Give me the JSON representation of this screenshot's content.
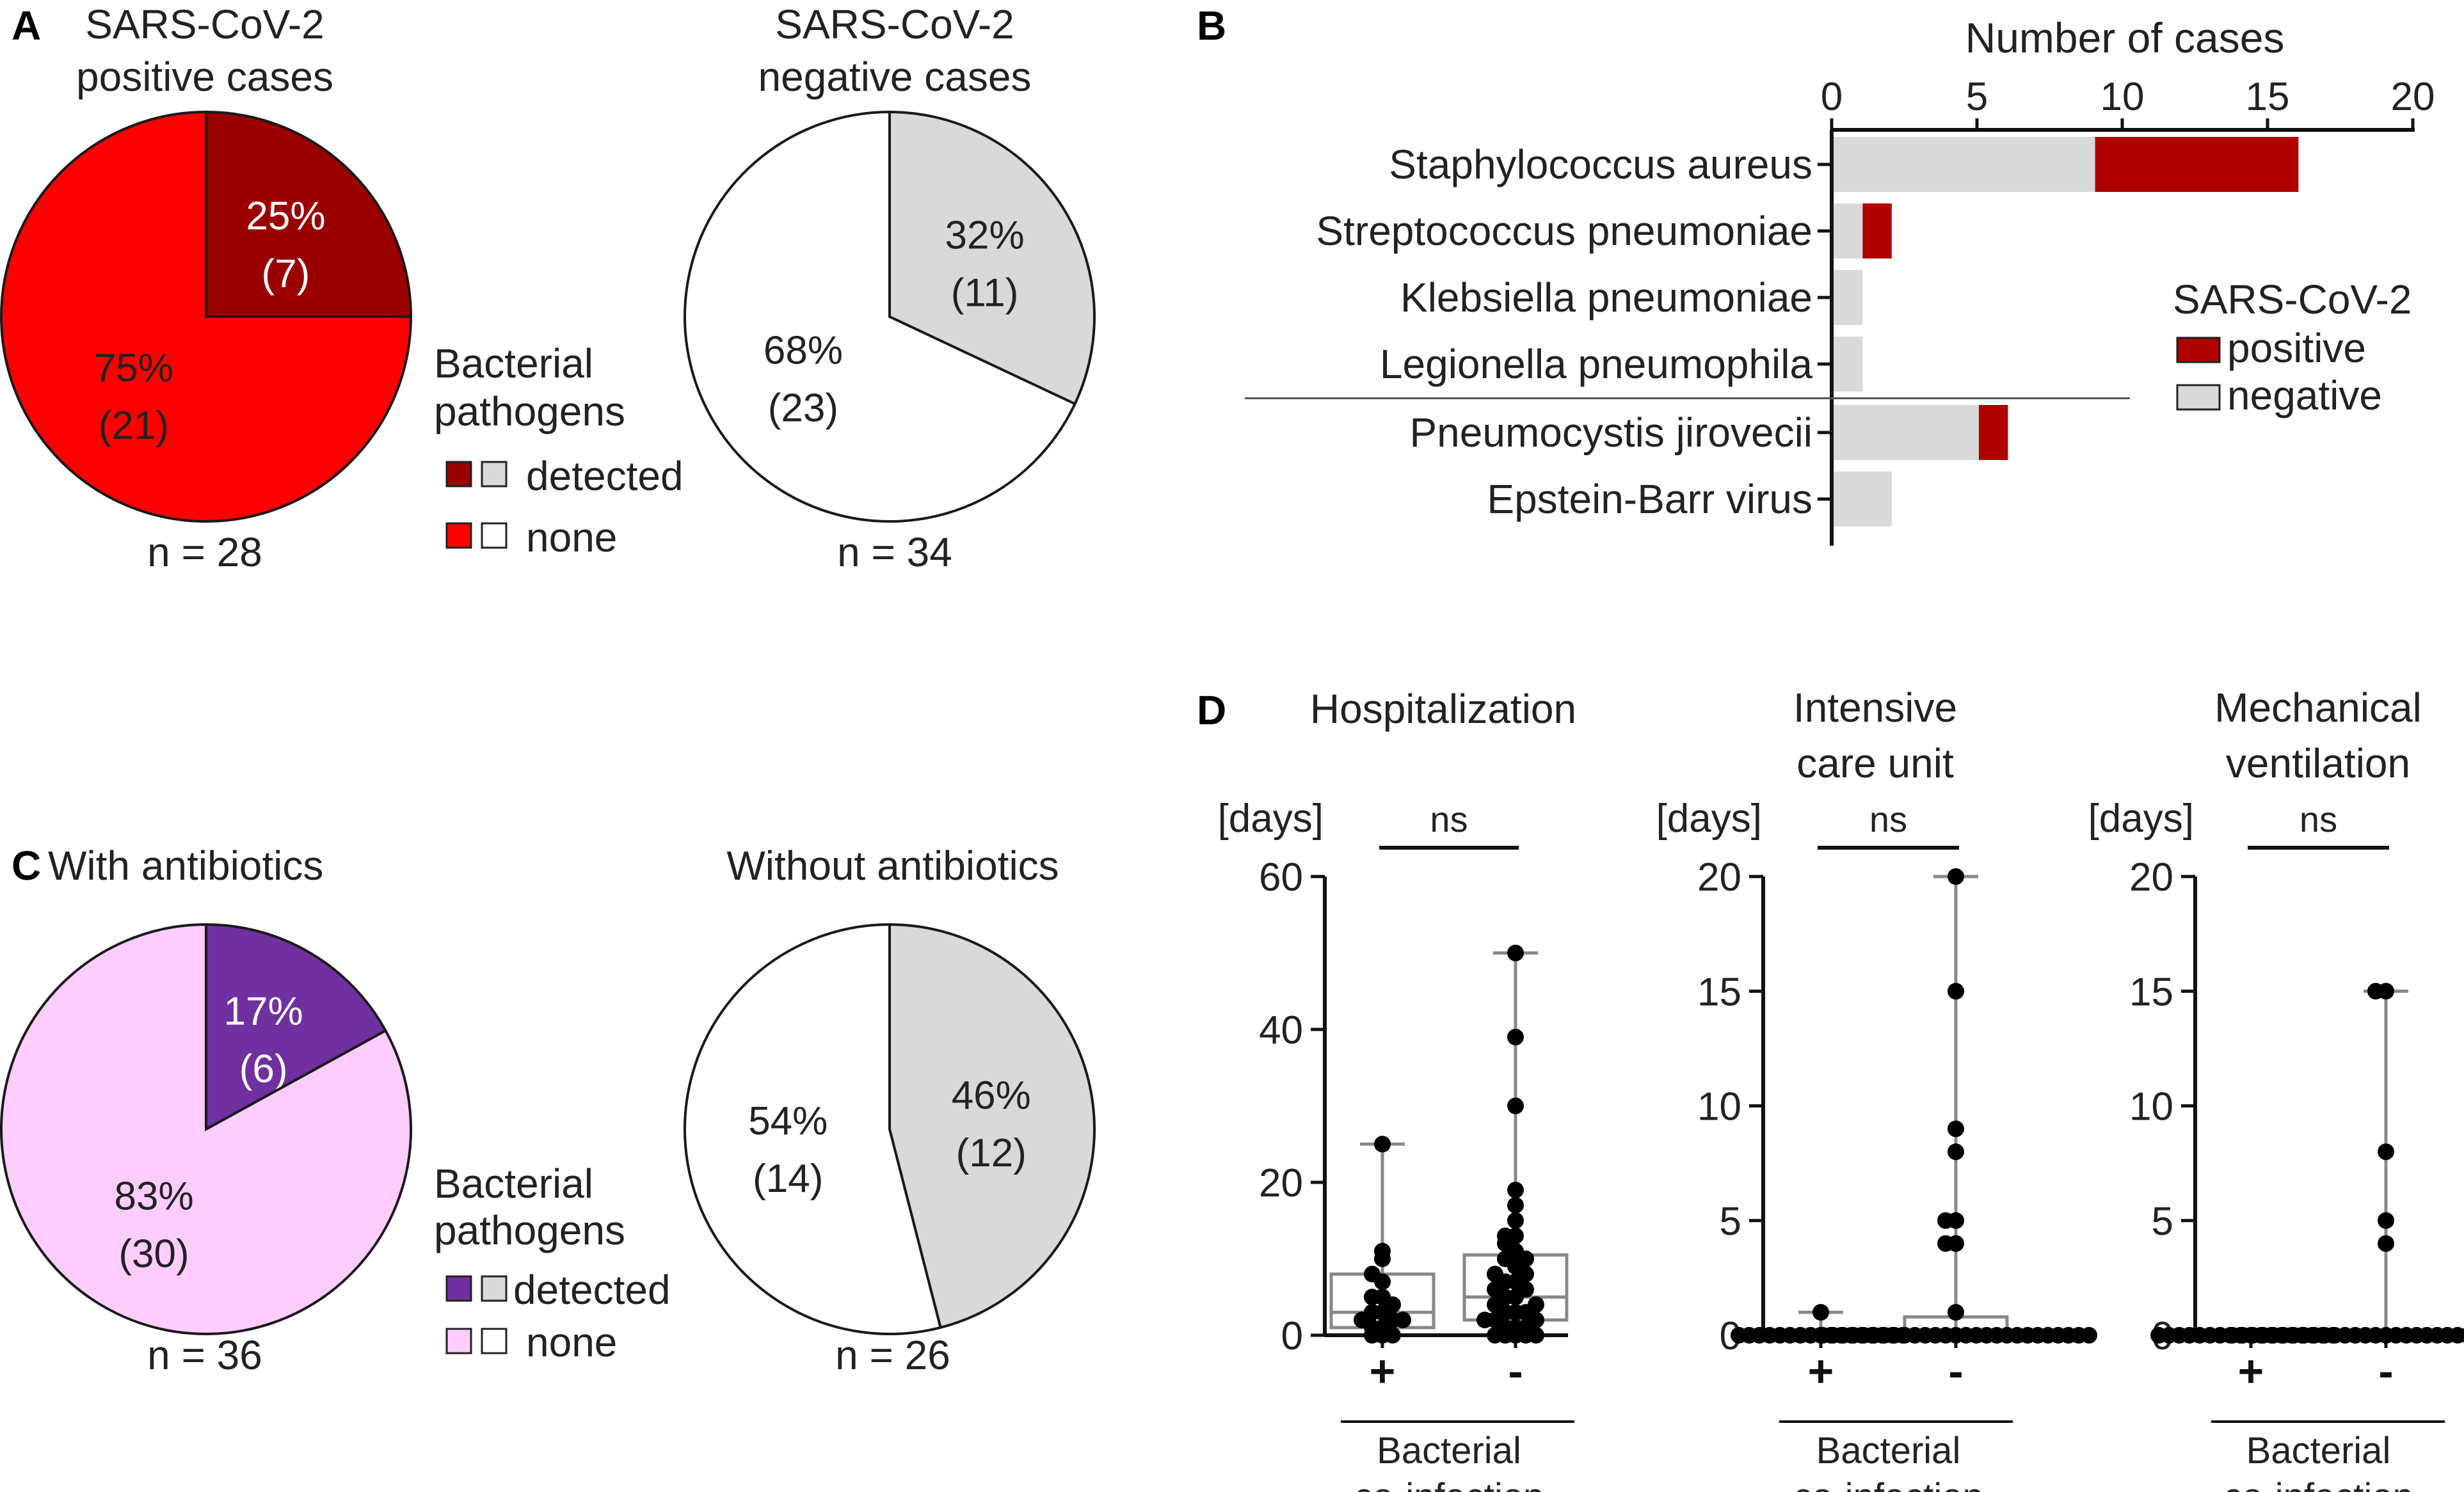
{
  "panel_a": {
    "letter": "A",
    "pos_title": [
      "SARS-CoV-2",
      "positive cases"
    ],
    "neg_title": [
      "SARS-CoV-2",
      "negative cases"
    ],
    "pos_n": "n = 28",
    "neg_n": "n = 34",
    "legend_title": [
      "Bacterial",
      "pathogens"
    ],
    "legend_detected": "detected",
    "legend_none": "none"
  },
  "panel_b": {
    "letter": "B",
    "axis_title": "Number of cases",
    "legend_title": "SARS-CoV-2",
    "legend_positive": "positive",
    "legend_negative": "negative"
  },
  "panel_c": {
    "letter": "C",
    "with_title": "With antibiotics",
    "without_title": "Without antibiotics",
    "with_n": "n = 36",
    "without_n": "n = 26",
    "legend_title": [
      "Bacterial",
      "pathogens"
    ],
    "legend_detected": "detected",
    "legend_none": "none"
  },
  "panel_d": {
    "letter": "D",
    "unit_label": "[days]",
    "ns_label": "ns",
    "group_plus": "+",
    "group_minus": "-",
    "xlabel": [
      "Bacterial",
      "co-infection"
    ]
  },
  "colors": {
    "pos_detected": "#9b0000",
    "pos_none": "#ff0000",
    "neg_detected": "#d9d9d9",
    "neg_none": "#ffffff",
    "abx_detected": "#7030a0",
    "abx_none": "#ffccff",
    "bar_positive": "#b00000",
    "bar_negative": "#d9d9d9"
  },
  "chart_data": [
    {
      "type": "pie",
      "panel": "A",
      "title": "SARS-CoV-2 positive cases",
      "n": 28,
      "slices": [
        {
          "label": "detected",
          "percent": 25,
          "count": 7,
          "color": "#9b0000",
          "text_color": "#ffffff"
        },
        {
          "label": "none",
          "percent": 75,
          "count": 21,
          "color": "#ff0000",
          "text_color": "#222222"
        }
      ]
    },
    {
      "type": "pie",
      "panel": "A",
      "title": "SARS-CoV-2 negative cases",
      "n": 34,
      "slices": [
        {
          "label": "detected",
          "percent": 32,
          "count": 11,
          "color": "#d9d9d9",
          "text_color": "#222222"
        },
        {
          "label": "none",
          "percent": 68,
          "count": 23,
          "color": "#ffffff",
          "text_color": "#222222"
        }
      ]
    },
    {
      "type": "bar",
      "panel": "B",
      "orientation": "horizontal",
      "stacked": true,
      "xlabel": "Number of cases",
      "xlim": [
        0,
        20
      ],
      "xticks": [
        0,
        5,
        10,
        15,
        20
      ],
      "categories": [
        "Staphylococcus aureus",
        "Streptococcus pneumoniae",
        "Klebsiella pneumoniae",
        "Legionella pneumophila",
        "Pneumocystis jirovecii",
        "Epstein-Barr virus"
      ],
      "separator_after_index": 3,
      "legend_title": "SARS-CoV-2",
      "series": [
        {
          "name": "negative",
          "values": [
            9,
            1,
            1,
            1,
            5,
            2
          ],
          "color": "#d9d9d9"
        },
        {
          "name": "positive",
          "values": [
            7,
            1,
            0,
            0,
            1,
            0
          ],
          "color": "#b00000"
        }
      ]
    },
    {
      "type": "pie",
      "panel": "C",
      "title": "With antibiotics",
      "n": 36,
      "slices": [
        {
          "label": "detected",
          "percent": 17,
          "count": 6,
          "color": "#7030a0",
          "text_color": "#ffffff"
        },
        {
          "label": "none",
          "percent": 83,
          "count": 30,
          "color": "#ffccff",
          "text_color": "#222222"
        }
      ]
    },
    {
      "type": "pie",
      "panel": "C",
      "title": "Without antibiotics",
      "n": 26,
      "slices": [
        {
          "label": "detected",
          "percent": 46,
          "count": 12,
          "color": "#d9d9d9",
          "text_color": "#222222"
        },
        {
          "label": "none",
          "percent": 54,
          "count": 14,
          "color": "#ffffff",
          "text_color": "#222222"
        }
      ]
    },
    {
      "type": "scatter",
      "panel": "D",
      "title": [
        "Hospitalization"
      ],
      "ylabel": "[days]",
      "ylim": [
        0,
        60
      ],
      "yticks": [
        0,
        20,
        40,
        60
      ],
      "significance": "ns",
      "xlabel": "Bacterial co-infection",
      "groups": [
        {
          "label": "+",
          "values": [
            0,
            0,
            0,
            1,
            1,
            2,
            2,
            2,
            3,
            3,
            4,
            5,
            5,
            7,
            8,
            10,
            11,
            25
          ],
          "box": {
            "q1": 1,
            "median": 3,
            "q3": 8,
            "min": 0,
            "max": 25
          }
        },
        {
          "label": "-",
          "values": [
            0,
            0,
            0,
            0,
            0,
            1,
            1,
            1,
            2,
            2,
            2,
            3,
            3,
            3,
            4,
            4,
            5,
            5,
            6,
            6,
            7,
            7,
            8,
            8,
            9,
            10,
            10,
            11,
            12,
            13,
            13,
            15,
            17,
            19,
            30,
            39,
            50
          ],
          "box": {
            "q1": 2,
            "median": 5,
            "q3": 10.5,
            "min": 0,
            "max": 50
          }
        }
      ]
    },
    {
      "type": "scatter",
      "panel": "D",
      "title": [
        "Intensive",
        "care unit"
      ],
      "ylabel": "[days]",
      "ylim": [
        0,
        20
      ],
      "yticks": [
        0,
        5,
        10,
        15,
        20
      ],
      "significance": "ns",
      "xlabel": "Bacterial co-infection",
      "groups": [
        {
          "label": "+",
          "values": [
            0,
            0,
            0,
            0,
            0,
            0,
            0,
            0,
            0,
            0,
            0,
            0,
            0,
            0,
            0,
            0,
            0,
            1
          ],
          "box": {
            "q1": 0,
            "median": 0,
            "q3": 0,
            "min": 0,
            "max": 1
          }
        },
        {
          "label": "-",
          "values": [
            0,
            0,
            0,
            0,
            0,
            0,
            0,
            0,
            0,
            0,
            0,
            0,
            0,
            0,
            0,
            0,
            0,
            0,
            0,
            0,
            0,
            0,
            0,
            0,
            0,
            0,
            0,
            1,
            4,
            4,
            5,
            5,
            8,
            9,
            15,
            20
          ],
          "box": {
            "q1": 0,
            "median": 0,
            "q3": 0.8,
            "min": 0,
            "max": 20
          }
        }
      ]
    },
    {
      "type": "scatter",
      "panel": "D",
      "title": [
        "Mechanical",
        "ventilation"
      ],
      "ylabel": "[days]",
      "ylim": [
        0,
        20
      ],
      "yticks": [
        0,
        5,
        10,
        15,
        20
      ],
      "significance": "ns",
      "xlabel": "Bacterial co-infection",
      "groups": [
        {
          "label": "+",
          "values": [
            0,
            0,
            0,
            0,
            0,
            0,
            0,
            0,
            0,
            0,
            0,
            0,
            0,
            0,
            0,
            0,
            0,
            0
          ],
          "box": {
            "q1": 0,
            "median": 0,
            "q3": 0,
            "min": 0,
            "max": 0
          }
        },
        {
          "label": "-",
          "values": [
            0,
            0,
            0,
            0,
            0,
            0,
            0,
            0,
            0,
            0,
            0,
            0,
            0,
            0,
            0,
            0,
            0,
            0,
            0,
            0,
            0,
            0,
            0,
            0,
            0,
            0,
            0,
            0,
            0,
            0,
            4,
            5,
            8,
            15,
            15
          ],
          "box": {
            "q1": 0,
            "median": 0,
            "q3": 0,
            "min": 0,
            "max": 15
          }
        }
      ]
    }
  ]
}
